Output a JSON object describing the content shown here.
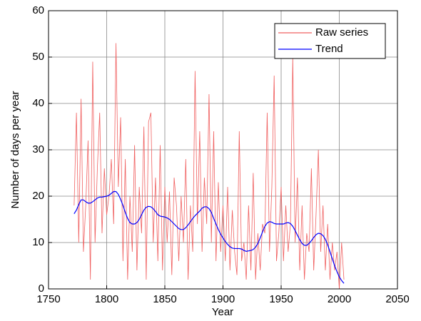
{
  "chart_data": {
    "type": "line",
    "xlabel": "Year",
    "ylabel": "Number of days per year",
    "xlim": [
      1750,
      2050
    ],
    "xticks": [
      1750,
      1800,
      1850,
      1900,
      1950,
      2000,
      2050
    ],
    "ylim": [
      0,
      60
    ],
    "yticks": [
      0,
      10,
      20,
      30,
      40,
      50,
      60
    ],
    "grid": true,
    "legend": "northeast",
    "x": [
      1772,
      1774,
      1776,
      1778,
      1780,
      1782,
      1784,
      1786,
      1788,
      1790,
      1792,
      1794,
      1796,
      1798,
      1800,
      1802,
      1804,
      1806,
      1808,
      1810,
      1812,
      1814,
      1816,
      1818,
      1820,
      1822,
      1824,
      1826,
      1828,
      1830,
      1832,
      1834,
      1836,
      1838,
      1840,
      1842,
      1844,
      1846,
      1848,
      1850,
      1852,
      1854,
      1856,
      1858,
      1860,
      1862,
      1864,
      1866,
      1868,
      1870,
      1872,
      1874,
      1876,
      1878,
      1880,
      1882,
      1884,
      1886,
      1888,
      1890,
      1892,
      1894,
      1896,
      1898,
      1900,
      1902,
      1904,
      1906,
      1908,
      1910,
      1912,
      1914,
      1916,
      1918,
      1920,
      1922,
      1924,
      1926,
      1928,
      1930,
      1932,
      1934,
      1936,
      1938,
      1940,
      1942,
      1944,
      1946,
      1948,
      1950,
      1952,
      1954,
      1956,
      1958,
      1960,
      1962,
      1964,
      1966,
      1968,
      1970,
      1972,
      1974,
      1976,
      1978,
      1980,
      1982,
      1984,
      1986,
      1988,
      1990,
      1992,
      1994,
      1996,
      1998,
      2000,
      2002,
      2004
    ],
    "series": [
      {
        "name": "Raw series",
        "color": "#f06060",
        "values": [
          18,
          38,
          10,
          41,
          8,
          18,
          32,
          2,
          49,
          10,
          26,
          38,
          12,
          26,
          16,
          20,
          28,
          14,
          53,
          22,
          37,
          6,
          28,
          2,
          20,
          8,
          31,
          4,
          22,
          12,
          35,
          2,
          36,
          38,
          10,
          24,
          6,
          31,
          4,
          22,
          10,
          21,
          3,
          24,
          18,
          6,
          20,
          10,
          28,
          2,
          18,
          8,
          47,
          14,
          34,
          8,
          24,
          14,
          42,
          10,
          34,
          6,
          23,
          8,
          18,
          6,
          22,
          4,
          17,
          8,
          3,
          34,
          6,
          10,
          2,
          18,
          4,
          25,
          2,
          12,
          4,
          14,
          12,
          38,
          8,
          22,
          46,
          6,
          12,
          22,
          6,
          18,
          8,
          14,
          50,
          10,
          24,
          4,
          18,
          2,
          12,
          8,
          26,
          4,
          16,
          30,
          8,
          18,
          4,
          14,
          2,
          10,
          4,
          8,
          0,
          10,
          2
        ]
      },
      {
        "name": "Trend",
        "color": "#0000ff",
        "values": [
          16.2,
          17,
          18.2,
          19.2,
          19.2,
          18.8,
          18.5,
          18.5,
          18.8,
          19.2,
          19.6,
          19.8,
          19.8,
          19.9,
          20,
          20.2,
          20.6,
          21,
          21,
          20.4,
          19.3,
          18,
          16.5,
          15.2,
          14.3,
          14,
          14,
          14.3,
          15,
          16,
          17,
          17.6,
          17.8,
          17.7,
          17.3,
          16.7,
          16,
          15.7,
          15.6,
          15.5,
          15.3,
          15,
          14.5,
          14,
          13.5,
          13,
          12.8,
          12.8,
          13.2,
          13.8,
          14.5,
          15.2,
          15.8,
          16.3,
          16.8,
          17.4,
          17.7,
          17.7,
          17.3,
          16.5,
          15.2,
          14,
          12.8,
          11.8,
          11,
          10.2,
          9.6,
          9.1,
          8.8,
          8.7,
          8.7,
          8.7,
          8.6,
          8.3,
          8.1,
          8.2,
          8.3,
          8.5,
          9,
          9.8,
          11,
          12.3,
          13.5,
          14.2,
          14.5,
          14.4,
          14.1,
          14,
          14,
          14,
          14,
          14.2,
          14.3,
          14.1,
          13.5,
          12.6,
          11.6,
          10.6,
          9.8,
          9.4,
          9.4,
          9.8,
          10.4,
          11.1,
          11.7,
          12,
          11.9,
          11.5,
          10.7,
          9.5,
          8,
          6.5,
          5,
          3.7,
          2.6,
          1.8,
          1.2
        ]
      }
    ]
  }
}
